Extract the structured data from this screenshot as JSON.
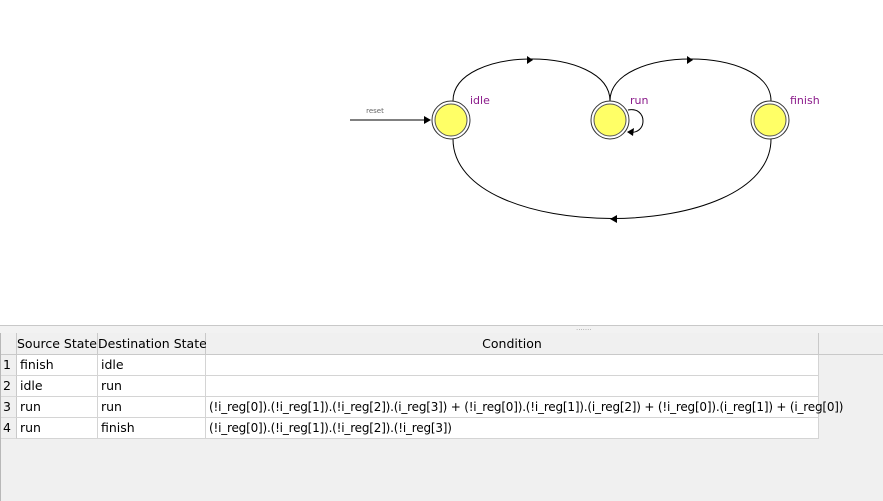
{
  "diagram": {
    "states": [
      {
        "name": "idle"
      },
      {
        "name": "run"
      },
      {
        "name": "finish"
      }
    ],
    "reset_label": "reset",
    "state_fill": "#ffff66",
    "label_color": "#8a1a8a"
  },
  "table": {
    "headers": {
      "index": "",
      "source": "Source State",
      "destination": "Destination State",
      "condition": "Condition"
    },
    "rows": [
      {
        "index": "1",
        "source": "finish",
        "destination": "idle",
        "condition": ""
      },
      {
        "index": "2",
        "source": "idle",
        "destination": "run",
        "condition": ""
      },
      {
        "index": "3",
        "source": "run",
        "destination": "run",
        "condition": "(!i_reg[0]).(!i_reg[1]).(!i_reg[2]).(i_reg[3]) + (!i_reg[0]).(!i_reg[1]).(i_reg[2]) + (!i_reg[0]).(i_reg[1]) + (i_reg[0])"
      },
      {
        "index": "4",
        "source": "run",
        "destination": "finish",
        "condition": "(!i_reg[0]).(!i_reg[1]).(!i_reg[2]).(!i_reg[3])"
      }
    ]
  }
}
